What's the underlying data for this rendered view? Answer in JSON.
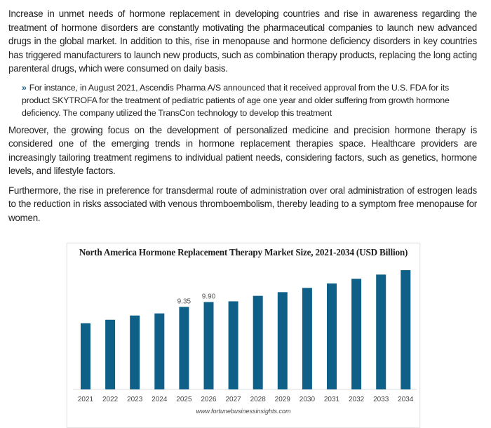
{
  "paragraphs": [
    "Increase in unmet needs of hormone replacement in developing countries and rise in awareness regarding the treatment of hormone disorders are constantly motivating the pharmaceutical companies to launch new advanced drugs in the global market. In addition to this, rise in menopause and hormone deficiency disorders in key countries has triggered manufacturers to launch new products, such as combination therapy products, replacing the long acting parenteral drugs, which were consumed on daily basis.",
    "Moreover, the growing focus on the development of personalized medicine and precision hormone therapy is considered one of the emerging trends in hormone replacement therapies space. Healthcare providers are increasingly tailoring treatment regimens to individual patient needs, considering factors, such as genetics, hormone levels, and lifestyle factors.",
    "Furthermore, the rise in preference for transdermal route of administration over oral administration of estrogen leads to the reduction in risks associated with venous thromboembolism, thereby leading to a symptom free menopause for women."
  ],
  "bullet": {
    "icon": "double-chevron-right-icon",
    "text": "For instance, in August 2021, Ascendis Pharma A/S announced that it received approval from the U.S. FDA for its product SKYTROFA for the treatment of pediatric patients of age one year and older suffering from growth hormone deficiency. The company utilized the TransCon technology to develop this treatment"
  },
  "chart_data": {
    "type": "bar",
    "title": "North America Hormone Replacement Therapy Market Size, 2021-2034 (USD Billion)",
    "categories": [
      "2021",
      "2022",
      "2023",
      "2024",
      "2025",
      "2026",
      "2027",
      "2028",
      "2029",
      "2030",
      "2031",
      "2032",
      "2033",
      "2034"
    ],
    "values": [
      7.5,
      7.89,
      8.37,
      8.61,
      9.35,
      9.9,
      9.98,
      10.6,
      11.02,
      11.5,
      12.0,
      12.53,
      13.01,
      13.51
    ],
    "data_labels": {
      "2025": "9.35",
      "2026": "9.90"
    },
    "xlabel": "",
    "ylabel": "",
    "ylim": [
      0,
      14
    ],
    "grid": false,
    "bar_color": "#0e6089",
    "source": "www.fortunebusinessinsights.com"
  }
}
